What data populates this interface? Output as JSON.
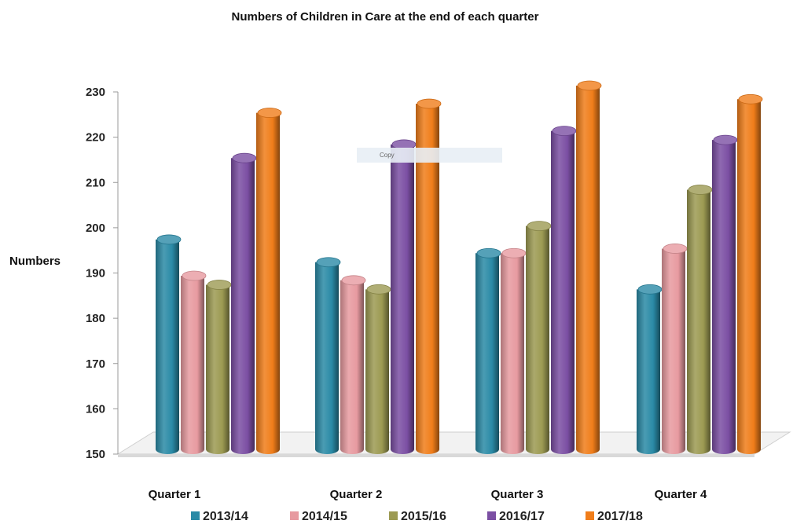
{
  "chart_data": {
    "type": "bar",
    "title": "Numbers of Children in Care at the end of each quarter",
    "ylabel": "Numbers",
    "xlabel": "",
    "ylim": [
      150,
      230
    ],
    "yticks": [
      150,
      160,
      170,
      180,
      190,
      200,
      210,
      220,
      230
    ],
    "categories": [
      "Quarter 1",
      "Quarter 2",
      "Quarter 3",
      "Quarter 4"
    ],
    "series": [
      {
        "name": "2013/14",
        "color": "#2a8aa6",
        "values": [
          196,
          191,
          193,
          185
        ]
      },
      {
        "name": "2014/15",
        "color": "#e79aa0",
        "values": [
          188,
          187,
          193,
          194
        ]
      },
      {
        "name": "2015/16",
        "color": "#9c9a52",
        "values": [
          186,
          185,
          199,
          207
        ]
      },
      {
        "name": "2016/17",
        "color": "#7b4fa3",
        "values": [
          214,
          217,
          220,
          218
        ]
      },
      {
        "name": "2017/18",
        "color": "#f07d1a",
        "values": [
          224,
          226,
          230,
          227
        ]
      }
    ],
    "legend_position": "bottom",
    "grid": false,
    "style": "3d-cylinder"
  },
  "tooltip": {
    "text": "Copy"
  }
}
